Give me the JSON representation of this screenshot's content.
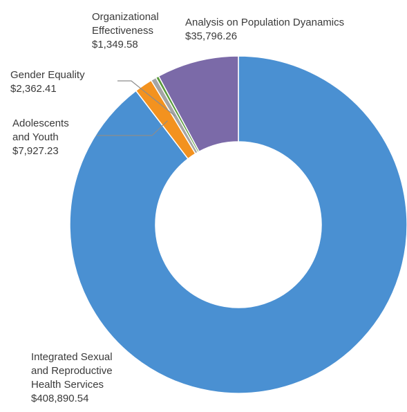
{
  "chart_data": {
    "type": "pie",
    "donut": true,
    "title": "",
    "slices": [
      {
        "label": [
          "Integrated Sexual",
          "and Reproductive",
          "Health Services"
        ],
        "value_text": "$408,890.54",
        "value": 408890.54,
        "color": "#4a90d2"
      },
      {
        "label": [
          "Adolescents",
          "and Youth"
        ],
        "value_text": "$7,927.23",
        "value": 7927.23,
        "color": "#f3921f"
      },
      {
        "label": [
          "Gender Equality"
        ],
        "value_text": "$2,362.41",
        "value": 2362.41,
        "color": "#a5a5a5"
      },
      {
        "label": [
          "Organizational",
          "Effectiveness"
        ],
        "value_text": "$1,349.58",
        "value": 1349.58,
        "color": "#5a9a3c"
      },
      {
        "label": [
          "Analysis on Population Dyanamics"
        ],
        "value_text": "$35,796.26",
        "value": 35796.26,
        "color": "#7b6aa8"
      }
    ]
  }
}
